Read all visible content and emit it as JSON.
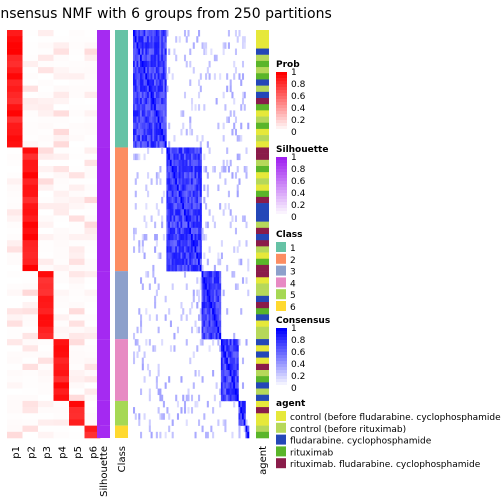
{
  "title": "Consensus NMF with 6 groups from 250 partitions",
  "chart_data": {
    "type": "heatmap",
    "prob_columns": [
      "p1",
      "p2",
      "p3",
      "p4",
      "p5",
      "p6"
    ],
    "annotation_labels": {
      "silhouette": "Silhouette",
      "class": "Class",
      "agent": "agent"
    },
    "class_colors": {
      "1": "#66c2a5",
      "2": "#fc8d62",
      "3": "#8da0cb",
      "4": "#e78ac3",
      "5": "#a6d854",
      "6": "#ffd92f"
    },
    "groups": [
      {
        "class": 1,
        "n": 19,
        "silhouette": 0.95
      },
      {
        "class": 2,
        "n": 20,
        "silhouette": 0.97
      },
      {
        "class": 3,
        "n": 11,
        "silhouette": 0.96
      },
      {
        "class": 4,
        "n": 10,
        "silhouette": 0.95
      },
      {
        "class": 5,
        "n": 4,
        "silhouette": 0.96
      },
      {
        "class": 6,
        "n": 2,
        "silhouette": 0.95
      }
    ],
    "legends": {
      "prob": {
        "title": "Prob",
        "ticks": [
          "1",
          "0.8",
          "0.6",
          "0.4",
          "0.2",
          "0"
        ],
        "low": "#ffffff",
        "high": "#ff0000"
      },
      "silhouette": {
        "title": "Silhouette",
        "ticks": [
          "1",
          "0.8",
          "0.6",
          "0.4",
          "0.2",
          "0"
        ],
        "low": "#ffffff",
        "high": "#a020f0"
      },
      "class": {
        "title": "Class",
        "labels": [
          "1",
          "2",
          "3",
          "4",
          "5",
          "6"
        ]
      },
      "consensus": {
        "title": "Consensus",
        "ticks": [
          "1",
          "0.8",
          "0.6",
          "0.4",
          "0.2",
          "0"
        ],
        "low": "#ffffff",
        "high": "#0000ff"
      },
      "agent": {
        "title": "agent",
        "items": [
          {
            "label": "control (before fludarabine. cyclophosphamide",
            "color": "#e6e83a"
          },
          {
            "label": "control (before rituximab)",
            "color": "#b6d85a"
          },
          {
            "label": "fludarabine. cyclophosphamide",
            "color": "#2447b8"
          },
          {
            "label": "rituximab",
            "color": "#5ab52a"
          },
          {
            "label": "rituximab. fludarabine. cyclophosphamide",
            "color": "#8a1c4a"
          }
        ]
      }
    }
  }
}
